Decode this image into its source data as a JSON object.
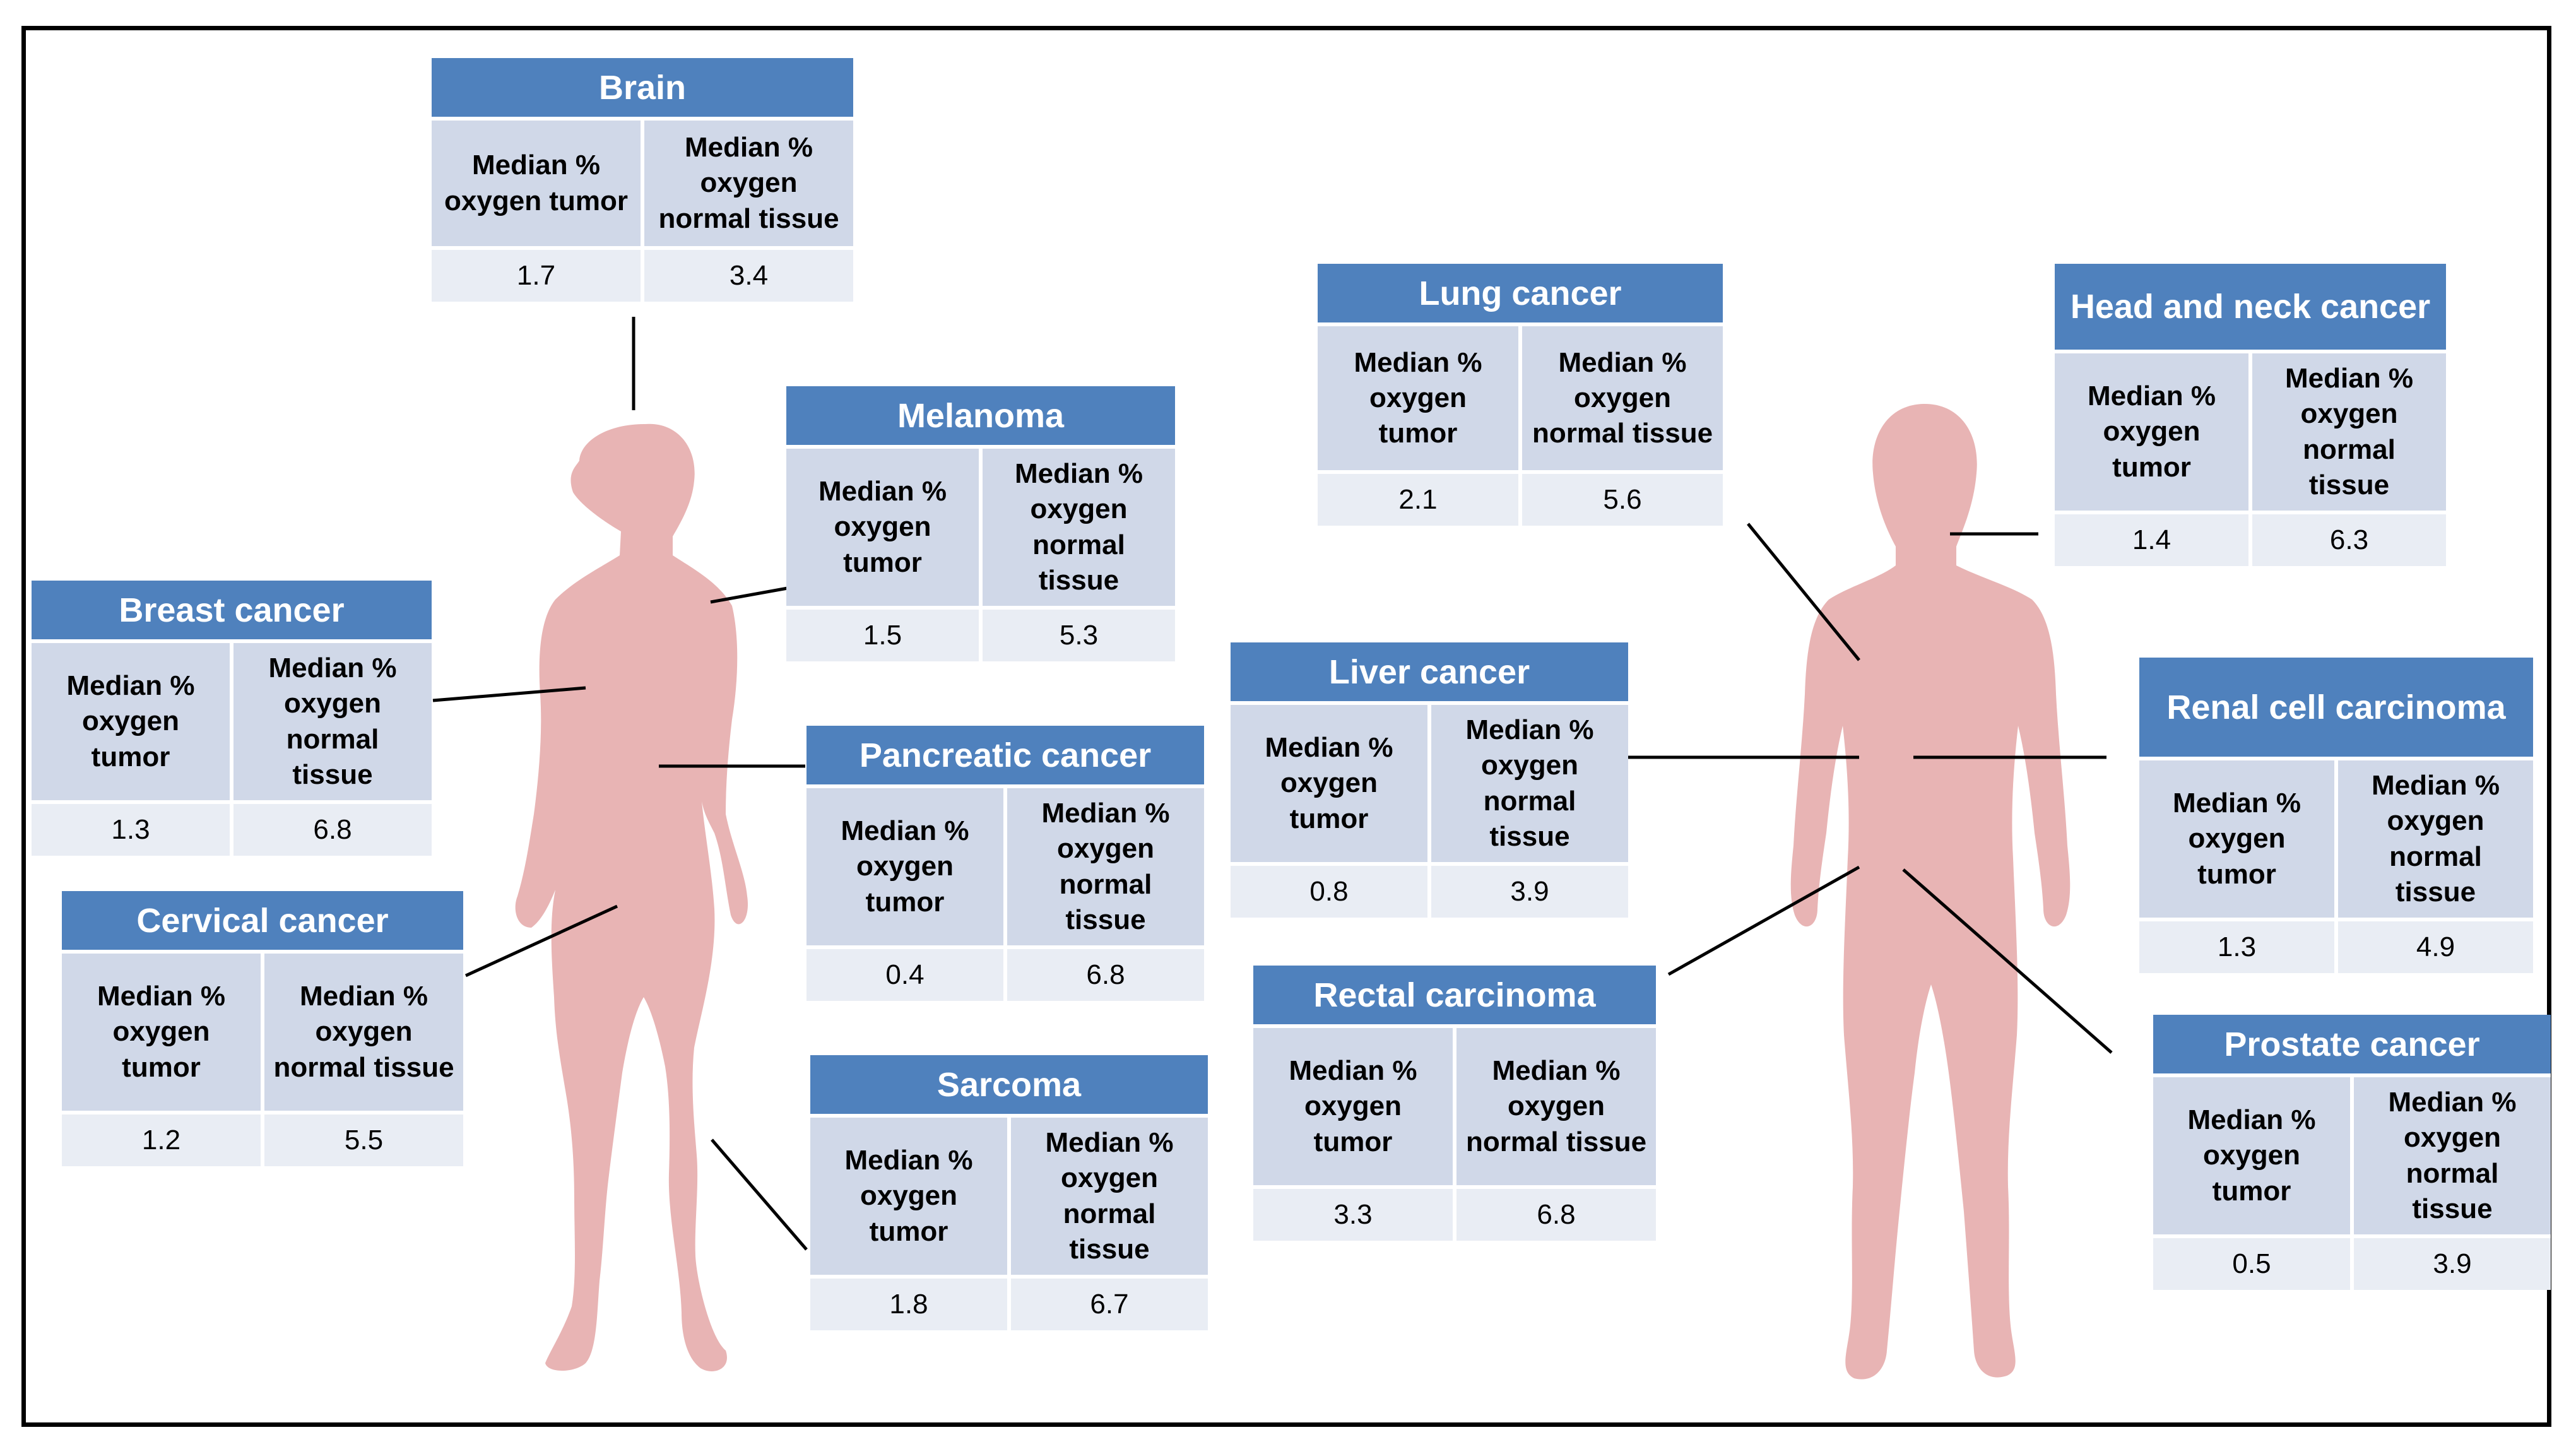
{
  "colors": {
    "header": "#4f81bd",
    "subheader": "#d0d8e8",
    "cell": "#e9edf4",
    "silhouette": "#e8b4b4",
    "connector": "#000000"
  },
  "cards": [
    {
      "id": "brain",
      "title": "Brain",
      "tumor_label": "Median % oxygen tumor",
      "normal_label": "Median % oxygen normal tissue",
      "tumor_value": "1.7",
      "normal_value": "3.4"
    },
    {
      "id": "melanoma",
      "title": "Melanoma",
      "tumor_label": "Median % oxygen tumor",
      "normal_label": "Median % oxygen normal tissue",
      "tumor_value": "1.5",
      "normal_value": "5.3"
    },
    {
      "id": "breast",
      "title": "Breast cancer",
      "tumor_label": "Median % oxygen tumor",
      "normal_label": "Median % oxygen normal tissue",
      "tumor_value": "1.3",
      "normal_value": "6.8"
    },
    {
      "id": "pancreatic",
      "title": "Pancreatic cancer",
      "tumor_label": "Median % oxygen tumor",
      "normal_label": "Median % oxygen normal tissue",
      "tumor_value": "0.4",
      "normal_value": "6.8"
    },
    {
      "id": "cervical",
      "title": "Cervical cancer",
      "tumor_label": "Median % oxygen tumor",
      "normal_label": "Median % oxygen normal tissue",
      "tumor_value": "1.2",
      "normal_value": "5.5"
    },
    {
      "id": "sarcoma",
      "title": "Sarcoma",
      "tumor_label": "Median % oxygen tumor",
      "normal_label": "Median % oxygen normal tissue",
      "tumor_value": "1.8",
      "normal_value": "6.7"
    },
    {
      "id": "lung",
      "title": "Lung cancer",
      "tumor_label": "Median % oxygen tumor",
      "normal_label": "Median % oxygen normal tissue",
      "tumor_value": "2.1",
      "normal_value": "5.6"
    },
    {
      "id": "liver",
      "title": "Liver cancer",
      "tumor_label": "Median % oxygen tumor",
      "normal_label": "Median % oxygen normal tissue",
      "tumor_value": "0.8",
      "normal_value": "3.9"
    },
    {
      "id": "rectal",
      "title": "Rectal carcinoma",
      "tumor_label": "Median % oxygen tumor",
      "normal_label": "Median % oxygen normal tissue",
      "tumor_value": "3.3",
      "normal_value": "6.8"
    },
    {
      "id": "headneck",
      "title": "Head and neck cancer",
      "tumor_label": "Median % oxygen tumor",
      "normal_label": "Median % oxygen normal tissue",
      "tumor_value": "1.4",
      "normal_value": "6.3"
    },
    {
      "id": "renal",
      "title": "Renal cell carcinoma",
      "tumor_label": "Median % oxygen tumor",
      "normal_label": "Median % oxygen normal tissue",
      "tumor_value": "1.3",
      "normal_value": "4.9"
    },
    {
      "id": "prostate",
      "title": "Prostate cancer",
      "tumor_label": "Median % oxygen tumor",
      "normal_label": "Median % oxygen normal tissue",
      "tumor_value": "0.5",
      "normal_value": "3.9"
    }
  ]
}
